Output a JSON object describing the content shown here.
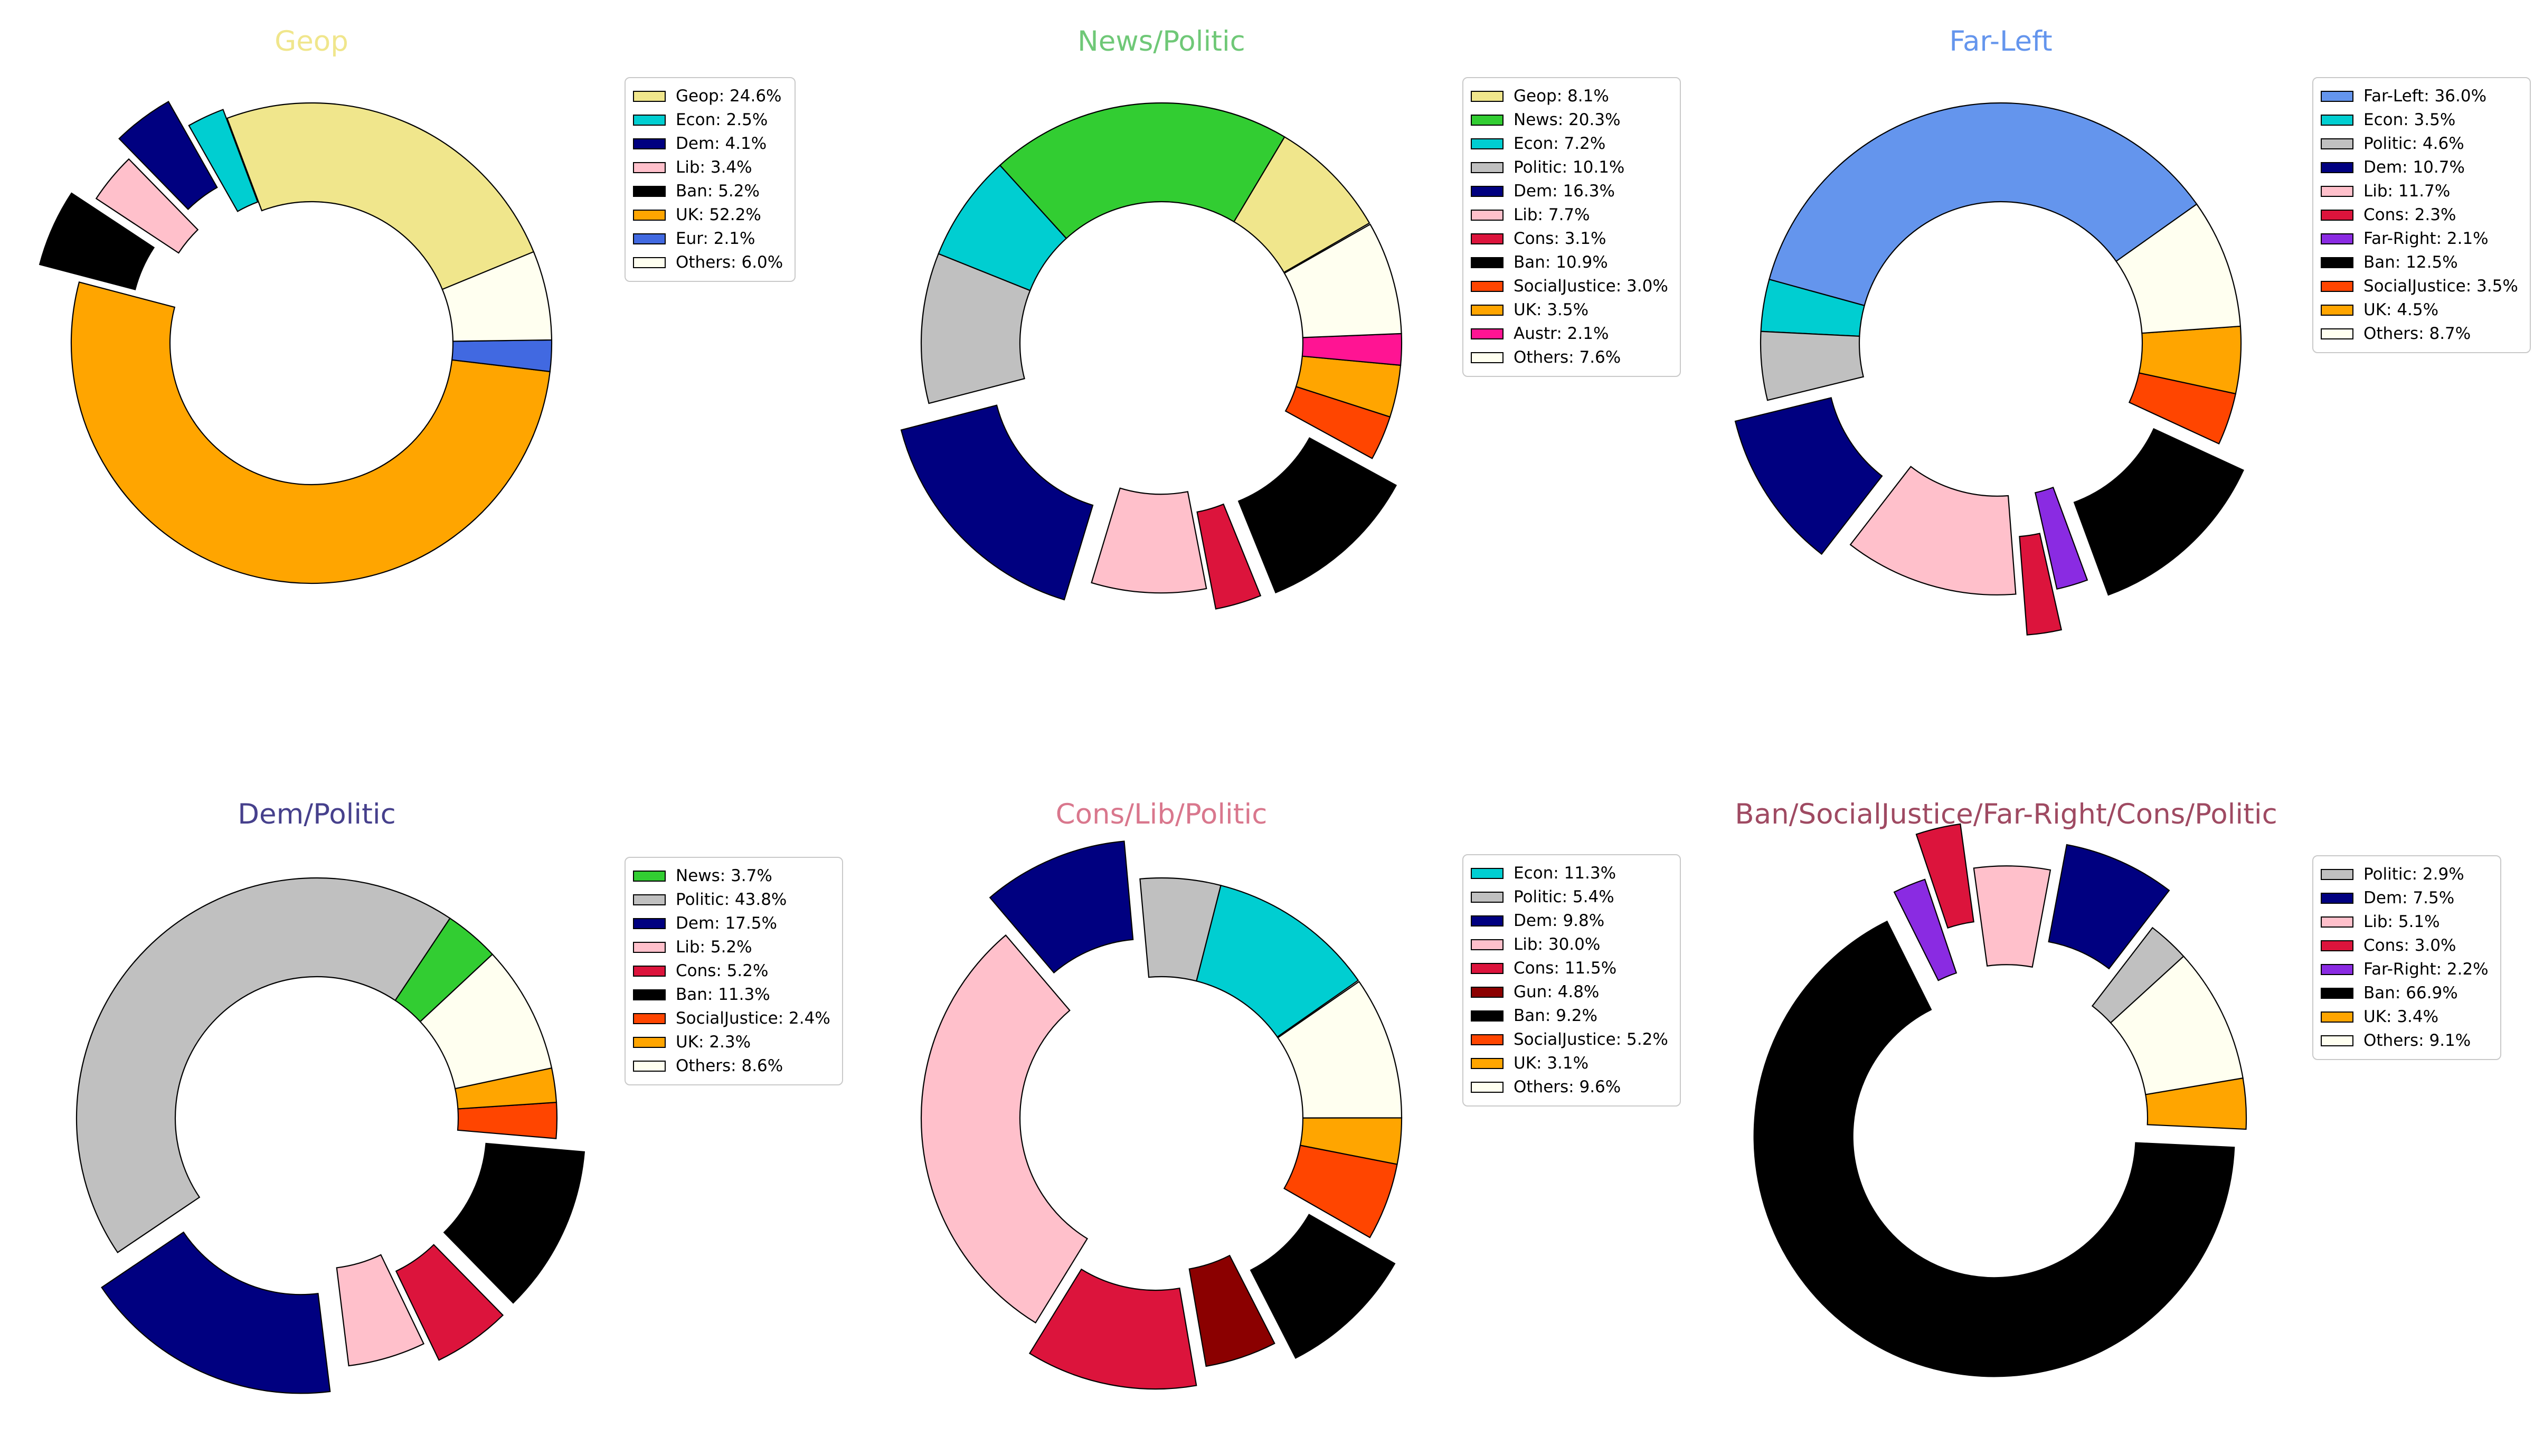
{
  "figure_background": "#ffffff",
  "chart_data": [
    {
      "type": "donut",
      "title": "Geop",
      "title_color": "#F0E68C",
      "start_angle_deg": 22,
      "counterclockwise": true,
      "inner_radius_ratio": 0.589,
      "legend_position": "right",
      "segments": [
        {
          "label": "Geop",
          "pct": 24.6,
          "color": "#F0E68C",
          "explode": 0
        },
        {
          "label": "Econ",
          "pct": 2.5,
          "color": "#00CED1",
          "explode": 0.04
        },
        {
          "label": "Dem",
          "pct": 4.1,
          "color": "#000080",
          "explode": 0.17
        },
        {
          "label": "Lib",
          "pct": 3.4,
          "color": "#FFC0CB",
          "explode": 0.08
        },
        {
          "label": "Ban",
          "pct": 5.2,
          "color": "#000000",
          "explode": 0.18
        },
        {
          "label": "UK",
          "pct": 52.2,
          "color": "#FFA500",
          "explode": 0
        },
        {
          "label": "Eur",
          "pct": 2.1,
          "color": "#4169E1",
          "explode": 0
        },
        {
          "label": "Others",
          "pct": 6.0,
          "color": "#FFFFF0",
          "explode": 0
        }
      ]
    },
    {
      "type": "donut",
      "title": "News/Politic",
      "title_color": "#6FC877",
      "start_angle_deg": 30,
      "counterclockwise": true,
      "inner_radius_ratio": 0.589,
      "legend_position": "right",
      "segments": [
        {
          "label": "Geop",
          "pct": 8.1,
          "color": "#F0E68C",
          "explode": 0
        },
        {
          "label": "News",
          "pct": 20.3,
          "color": "#32CD32",
          "explode": 0
        },
        {
          "label": "Econ",
          "pct": 7.2,
          "color": "#00CED1",
          "explode": 0
        },
        {
          "label": "Politic",
          "pct": 10.1,
          "color": "#C0C0C0",
          "explode": 0
        },
        {
          "label": "Dem",
          "pct": 16.3,
          "color": "#000080",
          "explode": 0.16
        },
        {
          "label": "Lib",
          "pct": 7.7,
          "color": "#FFC0CB",
          "explode": 0.04
        },
        {
          "label": "Cons",
          "pct": 3.1,
          "color": "#DC143C",
          "explode": 0.13
        },
        {
          "label": "Ban",
          "pct": 10.9,
          "color": "#000000",
          "explode": 0.15
        },
        {
          "label": "SocialJustice",
          "pct": 3.0,
          "color": "#FF4500",
          "explode": 0
        },
        {
          "label": "UK",
          "pct": 3.5,
          "color": "#FFA500",
          "explode": 0
        },
        {
          "label": "Austr",
          "pct": 2.1,
          "color": "#FF1493",
          "explode": 0
        },
        {
          "label": "Others",
          "pct": 7.6,
          "color": "#FFFFF0",
          "explode": 0
        }
      ]
    },
    {
      "type": "donut",
      "title": "Far-Left",
      "title_color": "#6495ED",
      "start_angle_deg": 35,
      "counterclockwise": true,
      "inner_radius_ratio": 0.589,
      "legend_position": "right",
      "segments": [
        {
          "label": "Far-Left",
          "pct": 36.0,
          "color": "#6495ED",
          "explode": 0
        },
        {
          "label": "Econ",
          "pct": 3.5,
          "color": "#00CED1",
          "explode": 0
        },
        {
          "label": "Politic",
          "pct": 4.6,
          "color": "#C0C0C0",
          "explode": 0
        },
        {
          "label": "Dem",
          "pct": 10.7,
          "color": "#000080",
          "explode": 0.16
        },
        {
          "label": "Lib",
          "pct": 11.7,
          "color": "#FFC0CB",
          "explode": 0.05
        },
        {
          "label": "Cons",
          "pct": 2.3,
          "color": "#DC143C",
          "explode": 0.22
        },
        {
          "label": "Far-Right",
          "pct": 2.1,
          "color": "#8A2BE2",
          "explode": 0.05
        },
        {
          "label": "Ban",
          "pct": 12.5,
          "color": "#000000",
          "explode": 0.15
        },
        {
          "label": "SocialJustice",
          "pct": 3.5,
          "color": "#FF4500",
          "explode": 0
        },
        {
          "label": "UK",
          "pct": 4.5,
          "color": "#FFA500",
          "explode": 0
        },
        {
          "label": "Others",
          "pct": 8.7,
          "color": "#FFFFF0",
          "explode": 0
        }
      ]
    },
    {
      "type": "donut",
      "title": "Dem/Politic",
      "title_color": "#46408C",
      "start_angle_deg": 43,
      "counterclockwise": true,
      "inner_radius_ratio": 0.589,
      "legend_position": "right",
      "segments": [
        {
          "label": "News",
          "pct": 3.7,
          "color": "#32CD32",
          "explode": 0
        },
        {
          "label": "Politic",
          "pct": 43.8,
          "color": "#C0C0C0",
          "explode": 0
        },
        {
          "label": "Dem",
          "pct": 17.5,
          "color": "#000080",
          "explode": 0.16
        },
        {
          "label": "Lib",
          "pct": 5.2,
          "color": "#FFC0CB",
          "explode": 0.04
        },
        {
          "label": "Cons",
          "pct": 5.2,
          "color": "#DC143C",
          "explode": 0.13
        },
        {
          "label": "Ban",
          "pct": 11.3,
          "color": "#000000",
          "explode": 0.13
        },
        {
          "label": "SocialJustice",
          "pct": 2.4,
          "color": "#FF4500",
          "explode": 0
        },
        {
          "label": "UK",
          "pct": 2.3,
          "color": "#FFA500",
          "explode": 0
        },
        {
          "label": "Others",
          "pct": 8.6,
          "color": "#FFFFF0",
          "explode": 0
        }
      ]
    },
    {
      "type": "donut",
      "title": "Cons/Lib/Politic",
      "title_color": "#D9778D",
      "start_angle_deg": 35,
      "counterclockwise": true,
      "inner_radius_ratio": 0.589,
      "legend_position": "right",
      "segments": [
        {
          "label": "Econ",
          "pct": 11.3,
          "color": "#00CED1",
          "explode": 0
        },
        {
          "label": "Politic",
          "pct": 5.4,
          "color": "#C0C0C0",
          "explode": 0
        },
        {
          "label": "Dem",
          "pct": 9.8,
          "color": "#000080",
          "explode": 0.17
        },
        {
          "label": "Lib",
          "pct": 30.0,
          "color": "#FFC0CB",
          "explode": 0
        },
        {
          "label": "Cons",
          "pct": 11.5,
          "color": "#DC143C",
          "explode": 0.13
        },
        {
          "label": "Gun",
          "pct": 4.8,
          "color": "#8B0000",
          "explode": 0.05
        },
        {
          "label": "Ban",
          "pct": 9.2,
          "color": "#000000",
          "explode": 0.15
        },
        {
          "label": "SocialJustice",
          "pct": 5.2,
          "color": "#FF4500",
          "explode": 0
        },
        {
          "label": "UK",
          "pct": 3.1,
          "color": "#FFA500",
          "explode": 0
        },
        {
          "label": "Others",
          "pct": 9.6,
          "color": "#FFFFF0",
          "explode": 0
        }
      ]
    },
    {
      "type": "donut",
      "title": "Ban/SocialJustice/Far-Right/Cons/Politic",
      "title_color": "#9F4A62",
      "start_angle_deg": 42,
      "counterclockwise": true,
      "inner_radius_ratio": 0.589,
      "legend_position": "right",
      "segments": [
        {
          "label": "Politic",
          "pct": 2.9,
          "color": "#C0C0C0",
          "explode": 0
        },
        {
          "label": "Dem",
          "pct": 7.5,
          "color": "#000080",
          "explode": 0.17
        },
        {
          "label": "Lib",
          "pct": 5.1,
          "color": "#FFC0CB",
          "explode": 0.05
        },
        {
          "label": "Cons",
          "pct": 3.0,
          "color": "#DC143C",
          "explode": 0.24
        },
        {
          "label": "Far-Right",
          "pct": 2.2,
          "color": "#8A2BE2",
          "explode": 0.05
        },
        {
          "label": "Ban",
          "pct": 66.9,
          "color": "#000000",
          "explode": 0.09
        },
        {
          "label": "UK",
          "pct": 3.4,
          "color": "#FFA500",
          "explode": 0
        },
        {
          "label": "Others",
          "pct": 9.1,
          "color": "#FFFFF0",
          "explode": 0
        }
      ]
    }
  ]
}
